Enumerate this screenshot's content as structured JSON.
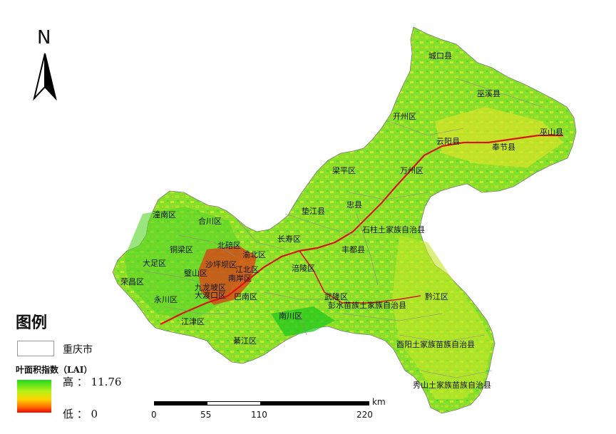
{
  "map": {
    "north_label": "N",
    "region_fill": {
      "base": "#7fe12a",
      "mid": "#c7ea28",
      "low": "#f1c30f",
      "urban": "#d91a10",
      "dense": "#2bd21f"
    },
    "places": [
      "城口县",
      "巫溪县",
      "开州区",
      "巫山县",
      "云阳县",
      "奉节县",
      "梁平区",
      "万州区",
      "潼南区",
      "合川区",
      "垫江县",
      "忠县",
      "石柱土家族自治县",
      "铜梁区",
      "北碚区",
      "长寿区",
      "丰都县",
      "大足区",
      "沙坪坝区",
      "渝北区",
      "璧山区",
      "江北区",
      "南岸区",
      "涪陵区",
      "荣昌区",
      "九龙坡区",
      "大渡口区",
      "巴南区",
      "永川区",
      "武隆区",
      "彭水苗族土家族自治县",
      "黔江区",
      "江津区",
      "南川区",
      "綦江区",
      "酉阳土家族苗族自治县",
      "秀山土家族苗族自治县"
    ]
  },
  "legend": {
    "title": "图例",
    "boundary_label": "重庆市",
    "lai_title": "叶面积指数（LAI）",
    "high_label": "高 ： 11.76",
    "low_label": "低 ： 0",
    "gradient_colors": [
      "#22d81e",
      "#b5f214",
      "#ffd200",
      "#ff7a00",
      "#ee0a0a"
    ]
  },
  "scalebar": {
    "ticks": [
      "0",
      "55",
      "110",
      "220"
    ],
    "unit": "km"
  }
}
